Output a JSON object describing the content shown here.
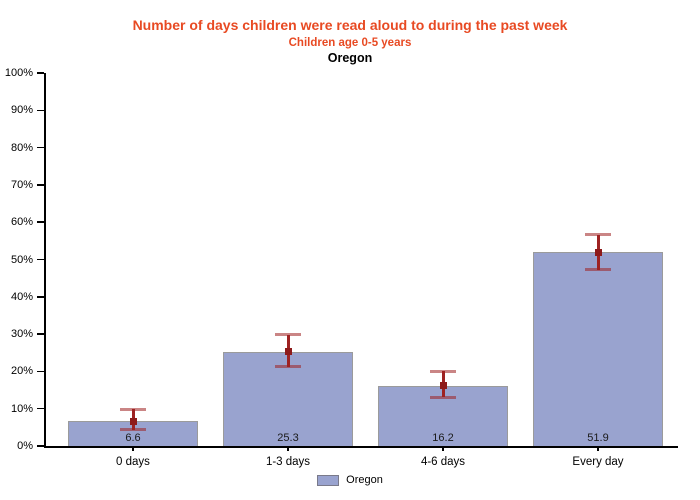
{
  "chart_data": {
    "type": "bar",
    "title": "Number of days children were read aloud to during the past week",
    "subtitle": "Children age 0-5 years",
    "region_label": "Oregon",
    "categories": [
      "0 days",
      "1-3 days",
      "4-6 days",
      "Every day"
    ],
    "values": [
      6.6,
      25.3,
      16.2,
      51.9
    ],
    "error_low": [
      4.4,
      21.3,
      13.1,
      47.2
    ],
    "error_high": [
      9.8,
      29.8,
      20.0,
      56.7
    ],
    "ylim": [
      0,
      100
    ],
    "ytick_step": 10,
    "ytick_labels": [
      "0%",
      "10%",
      "20%",
      "30%",
      "40%",
      "50%",
      "60%",
      "70%",
      "80%",
      "90%",
      "100%"
    ],
    "grid": false,
    "legend": {
      "label": "Oregon",
      "position": "bottom-center"
    },
    "colors": {
      "bar_fill": "#99a3cf",
      "bar_border": "#9b9b9b",
      "error_bar": "#9e2222",
      "error_bar_cap": "rgba(158,32,32,0.55)",
      "error_marker": "#8e1a1a",
      "title_text": "#e84a23",
      "axis": "#000000"
    }
  }
}
